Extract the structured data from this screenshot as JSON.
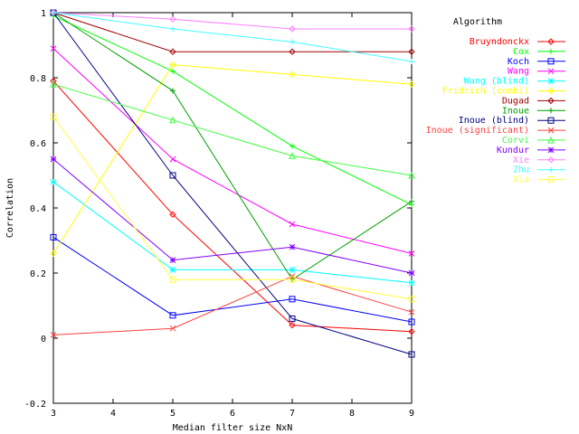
{
  "chart_data": {
    "type": "line",
    "xlabel": "Median filter size NxN",
    "ylabel": "Correlation",
    "x": [
      3,
      5,
      7,
      9
    ],
    "xlim": [
      3,
      9
    ],
    "ylim": [
      -0.2,
      1
    ],
    "xticks": [
      "3",
      "4",
      "5",
      "6",
      "7",
      "8",
      "9"
    ],
    "yticks": [
      "-0.2",
      "0",
      "0.2",
      "0.4",
      "0.6",
      "0.8",
      "1"
    ],
    "grid": false,
    "legend_title": "Algorithm",
    "legend_position": "right, outside plot",
    "series": [
      {
        "name": "Bruyndonckx",
        "color": "#ff0000",
        "marker": "diamond",
        "values": [
          0.79,
          0.38,
          0.04,
          0.02
        ]
      },
      {
        "name": "Cox",
        "color": "#00ff00",
        "marker": "plus",
        "values": [
          0.99,
          0.82,
          0.59,
          0.41
        ]
      },
      {
        "name": "Koch",
        "color": "#0000ff",
        "marker": "square",
        "values": [
          0.31,
          0.07,
          0.12,
          0.05
        ]
      },
      {
        "name": "Wang",
        "color": "#ff00ff",
        "marker": "cross",
        "values": [
          0.89,
          0.55,
          0.35,
          0.26
        ]
      },
      {
        "name": "Wang (blind)",
        "color": "#00ffff",
        "marker": "star",
        "values": [
          0.48,
          0.21,
          0.21,
          0.17
        ]
      },
      {
        "name": "Fridrich (combi)",
        "color": "#ffff00",
        "marker": "diamond",
        "values": [
          0.26,
          0.84,
          0.81,
          0.78
        ]
      },
      {
        "name": "Dugad",
        "color": "#a00000",
        "marker": "diamond",
        "values": [
          1.0,
          0.88,
          0.88,
          0.88
        ]
      },
      {
        "name": "Inoue",
        "color": "#00a000",
        "marker": "plus",
        "values": [
          1.0,
          0.76,
          0.18,
          0.42
        ]
      },
      {
        "name": "Inoue (blind)",
        "color": "#000080",
        "marker": "square",
        "values": [
          1.0,
          0.5,
          0.06,
          -0.05
        ]
      },
      {
        "name": "Inoue (significant)",
        "color": "#ff4040",
        "marker": "cross",
        "values": [
          0.01,
          0.03,
          0.19,
          0.08
        ]
      },
      {
        "name": "Corvi",
        "color": "#40ff40",
        "marker": "triangle",
        "values": [
          0.78,
          0.67,
          0.56,
          0.5
        ]
      },
      {
        "name": "Kundur",
        "color": "#8000ff",
        "marker": "star",
        "values": [
          0.55,
          0.24,
          0.28,
          0.2
        ]
      },
      {
        "name": "Xie",
        "color": "#ff80ff",
        "marker": "diamond",
        "values": [
          1.0,
          0.98,
          0.95,
          0.95
        ]
      },
      {
        "name": "Zhu",
        "color": "#40ffff",
        "marker": "plus",
        "values": [
          1.0,
          0.95,
          0.91,
          0.85
        ]
      },
      {
        "name": "Xia",
        "color": "#ffff40",
        "marker": "square",
        "values": [
          0.68,
          0.18,
          0.18,
          0.12
        ]
      }
    ]
  }
}
